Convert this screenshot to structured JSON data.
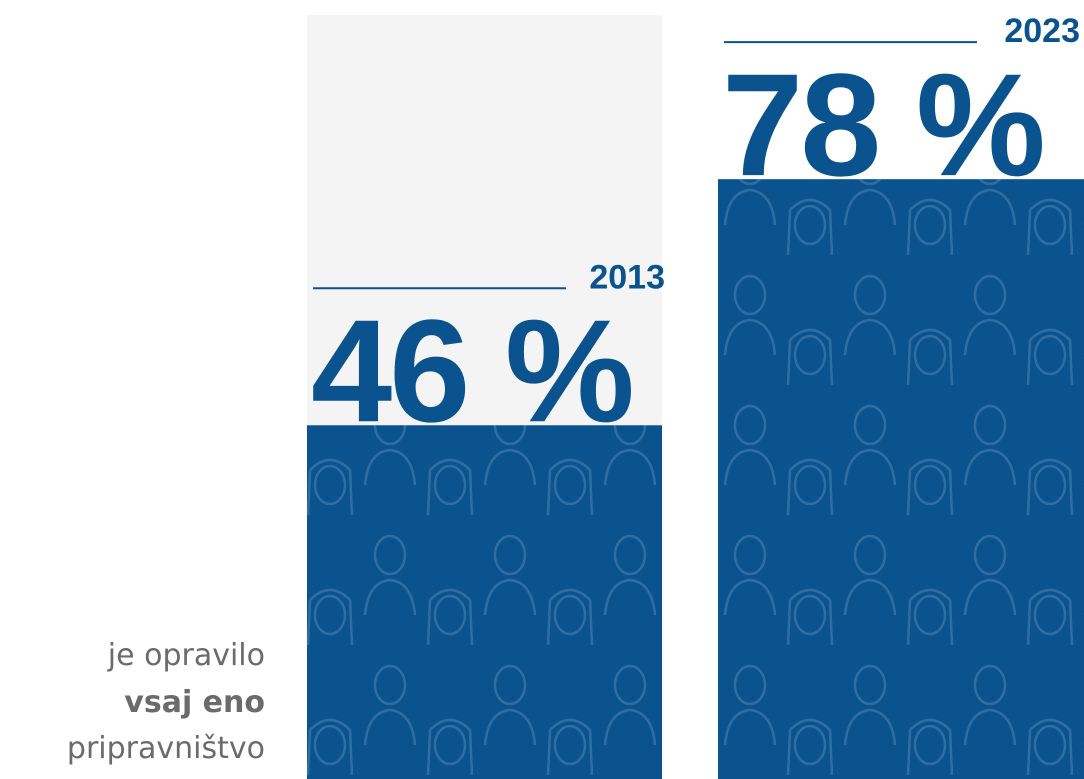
{
  "chart_data": {
    "type": "bar",
    "categories": [
      "2013",
      "2023"
    ],
    "values": [
      46,
      78
    ],
    "value_labels": [
      "46 %",
      "78 %"
    ],
    "color": "#0a538e",
    "ylim": [
      0,
      100
    ],
    "caption": [
      "je opravilo",
      "vsaj eno",
      "pripravništvo"
    ]
  }
}
